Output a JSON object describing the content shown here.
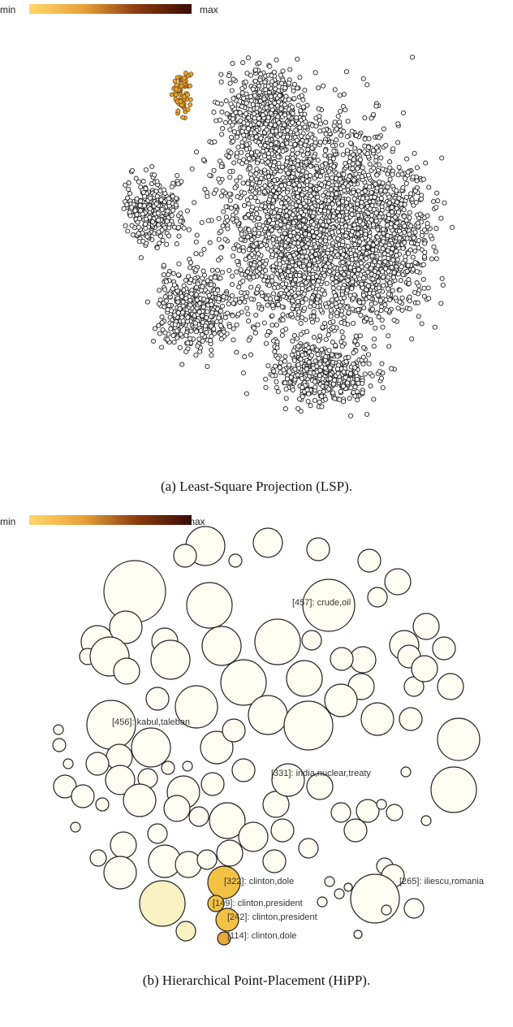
{
  "chart_data": [
    {
      "type": "scatter",
      "caption": "(a)  Least-Square Projection (LSP).",
      "colorbar": {
        "min_label": "min",
        "max_label": "max",
        "colors": [
          "#FFD76A",
          "#E8A23A",
          "#8A3A0E",
          "#3A0A05"
        ]
      },
      "colors": {
        "default_point": "#ffffff",
        "point_stroke": "#222222",
        "highlight": "#E8A23A"
      }
    },
    {
      "type": "scatter",
      "caption": "(b)  Hierarchical Point-Placement (HiPP).",
      "colorbar": {
        "min_label": "min",
        "max_label": "max",
        "colors": [
          "#FFD76A",
          "#E8A23A",
          "#8A3A0E",
          "#3A0A05"
        ]
      },
      "colors": {
        "bubble_fill": "#FFFDF2",
        "bubble_stroke": "#222222",
        "highlight": "#F2C245",
        "highlight_light": "#FBF2C4",
        "highlight_dark": "#E8A93A"
      },
      "labels": [
        "[457]: crude,oil",
        "[456]: kabul,taleban",
        "[331]: india,nuclear,treaty",
        "[322]: clinton,dole",
        "[149]: clinton,president",
        "[242]: clinton,president",
        "[114]: clinton,dole",
        "[265]: iliescu,romania"
      ]
    }
  ]
}
